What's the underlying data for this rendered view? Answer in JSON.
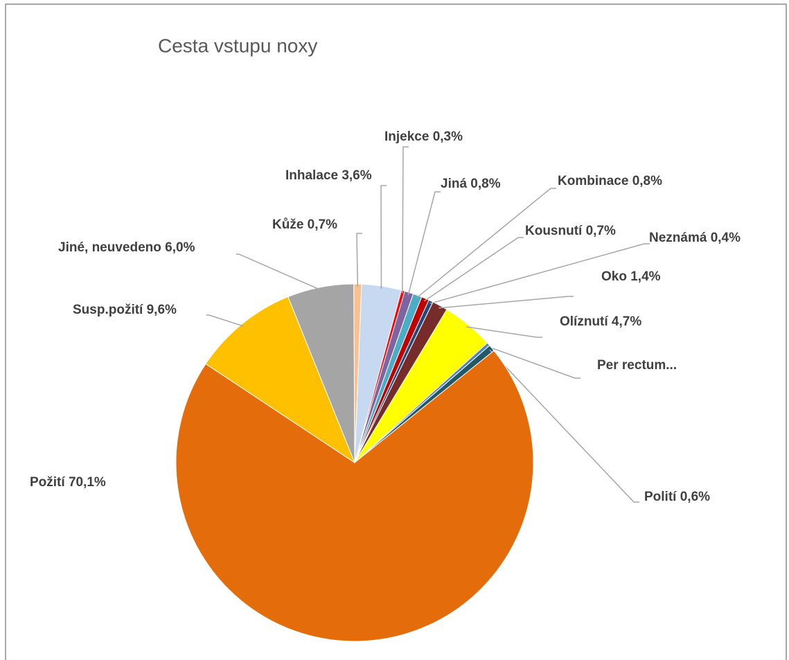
{
  "chart_data": {
    "type": "pie",
    "title": "Cesta vstupu noxy",
    "categories": [
      "Kůže 0,7%",
      "Inhalace 3,6%",
      "Injekce 0,3%",
      "Jiná 0,8%",
      "Kombinace 0,8%",
      "Kousnutí 0,7%",
      "Neznámá 0,4%",
      "Oko 1,4%",
      "Olíznutí 4,7%",
      "Per rectum...",
      "Polití 0,6%",
      "Požití 70,1%",
      "Susp.požití 9,6%",
      "Jiné, neuvedeno 6,0%"
    ],
    "values": [
      0.7,
      3.6,
      0.3,
      0.8,
      0.8,
      0.7,
      0.4,
      1.4,
      4.7,
      0.3,
      0.6,
      70.1,
      9.6,
      6.0
    ],
    "colors": [
      "#fac090",
      "#c6d9f1",
      "#ff0000",
      "#8064a2",
      "#4bacc6",
      "#c00000",
      "#1f497d",
      "#772c2a",
      "#ffff00",
      "#4f81bd",
      "#215968",
      "#e46c0a",
      "#ffc000",
      "#a5a5a5"
    ]
  }
}
